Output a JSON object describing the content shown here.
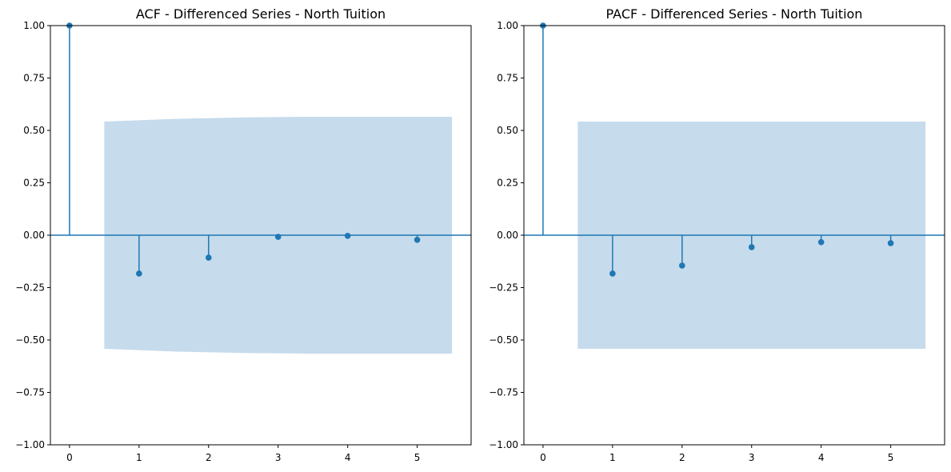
{
  "chart_data": [
    {
      "type": "stem",
      "title": "ACF - Differenced Series - North Tuition",
      "xlabel": "",
      "ylabel": "",
      "x": [
        0,
        1,
        2,
        3,
        4,
        5
      ],
      "values": [
        1.0,
        -0.183,
        -0.107,
        -0.008,
        -0.003,
        -0.022
      ],
      "confidence_band": {
        "x": [
          0.5,
          1.5,
          2.5,
          3.5,
          4.5,
          5.5
        ],
        "upper": [
          0.542,
          0.555,
          0.562,
          0.565,
          0.565,
          0.565
        ],
        "lower": [
          -0.542,
          -0.555,
          -0.562,
          -0.565,
          -0.565,
          -0.565
        ]
      },
      "xlim": [
        -0.275,
        5.775
      ],
      "ylim": [
        -1.0,
        1.0
      ],
      "xticks": [
        "0",
        "1",
        "2",
        "3",
        "4",
        "5"
      ],
      "yticks": [
        "1.00",
        "0.75",
        "0.50",
        "0.25",
        "0.00",
        "−0.25",
        "−0.50",
        "−0.75",
        "−1.00"
      ],
      "grid": false
    },
    {
      "type": "stem",
      "title": "PACF - Differenced Series - North Tuition",
      "xlabel": "",
      "ylabel": "",
      "x": [
        0,
        1,
        2,
        3,
        4,
        5
      ],
      "values": [
        1.0,
        -0.183,
        -0.145,
        -0.057,
        -0.033,
        -0.038
      ],
      "confidence_band": {
        "x": [
          0.5,
          5.5
        ],
        "upper": [
          0.542,
          0.542
        ],
        "lower": [
          -0.542,
          -0.542
        ]
      },
      "xlim": [
        -0.275,
        5.775
      ],
      "ylim": [
        -1.0,
        1.0
      ],
      "xticks": [
        "0",
        "1",
        "2",
        "3",
        "4",
        "5"
      ],
      "yticks": [
        "1.00",
        "0.75",
        "0.50",
        "0.25",
        "0.00",
        "−0.25",
        "−0.50",
        "−0.75",
        "−1.00"
      ],
      "grid": false
    }
  ],
  "colors": {
    "stem": "#1f77b4",
    "band": "#c6dbec",
    "axis": "#000000"
  }
}
